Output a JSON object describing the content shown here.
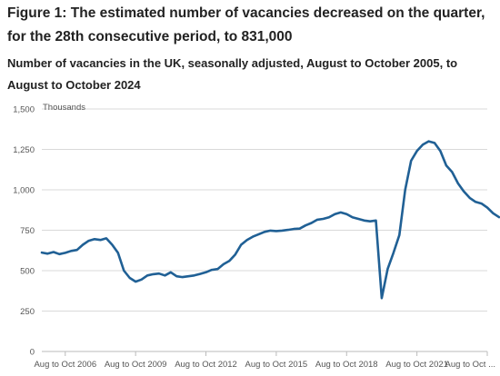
{
  "title": "Figure 1: The estimated number of vacancies decreased on the quarter, for the 28th consecutive period, to 831,000",
  "subtitle": "Number of vacancies in the UK, seasonally adjusted, August to October 2005, to August to October 2024",
  "colors": {
    "line": "#206095",
    "grid": "#d9d9d9",
    "axis": "#bbbbbb",
    "text": "#222222"
  },
  "chart_data": {
    "type": "line",
    "title": "Figure 1: The estimated number of vacancies decreased on the quarter, for the 28th consecutive period, to 831,000",
    "subtitle": "Number of vacancies in the UK, seasonally adjusted, August to October 2005, to August to October 2024",
    "ylabel": "Thousands",
    "xlabel": "",
    "ylim": [
      0,
      1500
    ],
    "yticks": [
      0,
      250,
      500,
      750,
      1000,
      1250,
      1500
    ],
    "ytick_labels": [
      "0",
      "250",
      "500",
      "750",
      "1,000",
      "1,250",
      "1,500"
    ],
    "xtick_labels": [
      "Aug to Oct 2006",
      "Aug to Oct 2009",
      "Aug to Oct 2012",
      "Aug to Oct 2015",
      "Aug to Oct 2018",
      "Aug to Oct 2021",
      "Aug to Oct ..."
    ],
    "xtick_years": [
      2006,
      2009,
      2012,
      2015,
      2018,
      2021,
      2024
    ],
    "x_range": [
      2005,
      2024
    ],
    "grid": true,
    "series": [
      {
        "x": [
          2005,
          2005.25,
          2005.5,
          2005.75,
          2006,
          2006.25,
          2006.5,
          2006.75,
          2007,
          2007.25,
          2007.5,
          2007.75,
          2008,
          2008.25,
          2008.5,
          2008.75,
          2009,
          2009.25,
          2009.5,
          2009.75,
          2010,
          2010.25,
          2010.5,
          2010.75,
          2011,
          2011.25,
          2011.5,
          2011.75,
          2012,
          2012.25,
          2012.5,
          2012.75,
          2013,
          2013.25,
          2013.5,
          2013.75,
          2014,
          2014.25,
          2014.5,
          2014.75,
          2015,
          2015.25,
          2015.5,
          2015.75,
          2016,
          2016.25,
          2016.5,
          2016.75,
          2017,
          2017.25,
          2017.5,
          2017.75,
          2018,
          2018.25,
          2018.5,
          2018.75,
          2019,
          2019.25,
          2019.5,
          2019.75,
          2020,
          2020.25,
          2020.5,
          2020.75,
          2021,
          2021.25,
          2021.5,
          2021.75,
          2022,
          2022.25,
          2022.5,
          2022.75,
          2023,
          2023.25,
          2023.5,
          2023.75,
          2024,
          2024.25,
          2024.5
        ],
        "values": [
          612,
          605,
          615,
          602,
          610,
          622,
          628,
          660,
          685,
          695,
          690,
          700,
          660,
          610,
          500,
          455,
          432,
          445,
          470,
          478,
          482,
          470,
          490,
          465,
          460,
          465,
          470,
          480,
          490,
          505,
          510,
          540,
          560,
          600,
          660,
          690,
          710,
          725,
          740,
          748,
          745,
          748,
          752,
          758,
          760,
          780,
          795,
          815,
          820,
          830,
          850,
          860,
          850,
          830,
          820,
          810,
          805,
          810,
          330,
          510,
          610,
          720,
          1000,
          1180,
          1240,
          1280,
          1300,
          1290,
          1240,
          1150,
          1110,
          1040,
          990,
          950,
          925,
          915,
          890,
          855,
          831
        ]
      }
    ]
  }
}
